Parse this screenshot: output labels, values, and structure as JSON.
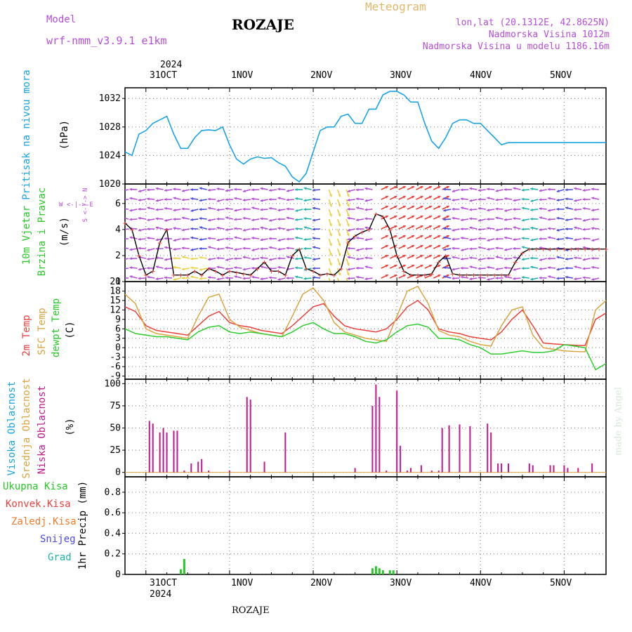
{
  "header": {
    "model_label": "Model",
    "model_name": "wrf-nmm_v3.9.1 e1km",
    "station": "ROZAJE",
    "product": "Meteogram",
    "lonlat": "lon,lat (20.1312E, 42.8625N)",
    "elev": "Nadmorska Visina 1012m",
    "elev_model": "Nadmorska Visina u modelu 1186.16m",
    "bottom_station": "ROZAJE",
    "watermark": "made by Angel"
  },
  "colors": {
    "pressure": "#1ba3e0",
    "t2m": "#e8413c",
    "tsfc": "#d9a441",
    "dewpt": "#2ecc2e",
    "low_cloud": "#c2188c",
    "mid_cloud": "#d9a441",
    "high_cloud": "#1ba3e0",
    "purple": "#b44fd6",
    "green": "#28c828",
    "red": "#e8413c",
    "orange": "#f07b2a",
    "blue": "#4a4ae0",
    "teal": "#20b2aa"
  },
  "time_axis": {
    "year": "2024",
    "days": [
      "31OCT",
      "1NOV",
      "2NOV",
      "3NOV",
      "4NOV",
      "5NOV"
    ],
    "start_offset_h": -6,
    "end_offset_h": 132
  },
  "chart_data": [
    {
      "type": "line",
      "panel": "pressure",
      "ylabel": "(hPa)",
      "side_label": "Pritisak na nivou mora",
      "ylim": [
        1020,
        1033.5
      ],
      "yticks": [
        1020,
        1024,
        1028,
        1032
      ],
      "series": [
        {
          "x": [
            -6,
            -4,
            -2,
            0,
            2,
            4,
            6,
            8,
            10,
            12,
            14,
            16,
            18,
            20,
            22,
            24,
            26,
            28,
            30,
            32,
            34,
            36,
            38,
            40,
            42,
            44,
            46,
            48,
            50,
            52,
            54,
            56,
            58,
            60,
            62,
            64,
            66,
            68,
            70,
            72,
            74,
            76,
            78,
            80,
            82,
            84,
            86,
            88,
            90,
            92,
            94,
            96,
            98,
            100,
            102,
            104,
            106,
            108,
            110,
            112,
            114,
            116,
            118,
            120,
            122,
            124,
            126,
            128,
            130,
            132
          ],
          "values": [
            1024.5,
            1024,
            1027,
            1027.5,
            1028.5,
            1029,
            1029.5,
            1027,
            1025,
            1025,
            1026.5,
            1027.5,
            1027.6,
            1027.5,
            1028,
            1025.5,
            1023.5,
            1022.8,
            1023.5,
            1023.8,
            1023.6,
            1023.7,
            1023,
            1022.5,
            1021,
            1020.3,
            1021.5,
            1024.5,
            1027.5,
            1028,
            1028,
            1029.5,
            1029.8,
            1028.5,
            1028.5,
            1030.5,
            1030.5,
            1032.5,
            1033,
            1033,
            1032.5,
            1031.5,
            1031.5,
            1028.5,
            1026,
            1025,
            1026.5,
            1028.5,
            1029,
            1029,
            1028.5,
            1028.5,
            1027.5,
            1026.5,
            1025.5,
            1025.8,
            1025.8,
            1025.8,
            1025.8,
            1025.8,
            1025.8,
            1025.8,
            1025.8,
            1025.8,
            1025.8,
            1025.8,
            1025.8,
            1025.8,
            1025.8,
            1025.8
          ]
        }
      ]
    },
    {
      "type": "line",
      "panel": "wind",
      "ylabel": "(m/s)",
      "side_label_1": "10m Vjetar",
      "side_label_2": "Brzina i Pravac",
      "compass": "W <-|-> E",
      "compass_ns": "S <-|-> N",
      "ylim": [
        0,
        7.5
      ],
      "yticks": [
        0,
        2,
        4,
        6
      ],
      "series": [
        {
          "name": "speed",
          "x": [
            -6,
            -4,
            -2,
            0,
            2,
            4,
            6,
            8,
            10,
            12,
            14,
            16,
            18,
            20,
            22,
            24,
            26,
            28,
            30,
            32,
            34,
            36,
            38,
            40,
            42,
            44,
            46,
            48,
            50,
            52,
            54,
            56,
            58,
            60,
            62,
            64,
            66,
            68,
            70,
            72,
            74,
            76,
            78,
            80,
            82,
            84,
            86,
            88,
            90,
            92,
            94,
            96,
            98,
            100,
            102,
            104,
            106,
            108,
            110,
            112,
            114,
            116,
            118,
            120,
            122,
            124,
            126,
            128,
            130,
            132
          ],
          "values": [
            4.5,
            4,
            2,
            0.5,
            0.8,
            3,
            4,
            0.5,
            0.5,
            0.5,
            0.8,
            0.5,
            1,
            0.8,
            0.5,
            0.8,
            0.7,
            0.6,
            0.5,
            1,
            1.5,
            0.8,
            0.8,
            0.5,
            2,
            2.5,
            1,
            0.8,
            0.5,
            0.6,
            0.5,
            1,
            3,
            3.5,
            3.8,
            4,
            5.2,
            5,
            4,
            2,
            0.8,
            0.5,
            0.5,
            0.5,
            0.6,
            1.5,
            2,
            0.6,
            0.5,
            0.5,
            0.5,
            0.5,
            0.5,
            0.5,
            0.5,
            0.5,
            1.5,
            2.2,
            2.5,
            2.5,
            2.5,
            2.5,
            2.5,
            2.5,
            2.5,
            2.5,
            2.5,
            2.5,
            2.5,
            2.5
          ]
        }
      ]
    },
    {
      "type": "line",
      "panel": "temperature",
      "ylabel": "(C)",
      "side_label_1": "2m Temp",
      "side_label_2": "SFC Temp",
      "side_label_3": "dewpt Temp",
      "ylim": [
        -10,
        21
      ],
      "yticks": [
        -9,
        -6,
        -3,
        0,
        3,
        6,
        9,
        12,
        15,
        18,
        21
      ],
      "series": [
        {
          "name": "2m Temp",
          "x": [
            -6,
            -3,
            0,
            3,
            6,
            9,
            12,
            15,
            18,
            21,
            24,
            27,
            30,
            33,
            36,
            39,
            42,
            45,
            48,
            51,
            54,
            57,
            60,
            63,
            66,
            69,
            72,
            75,
            78,
            81,
            84,
            87,
            90,
            93,
            96,
            99,
            102,
            105,
            108,
            111,
            114,
            117,
            120,
            123,
            126,
            129,
            132
          ],
          "values": [
            13,
            11.5,
            7,
            5.5,
            5,
            4.5,
            4,
            7,
            10,
            11.5,
            8,
            7,
            6.5,
            5.5,
            5,
            4.5,
            7,
            10,
            13,
            14,
            10,
            7,
            6,
            5.5,
            5,
            6,
            9,
            13,
            15,
            12,
            6,
            5,
            4.5,
            3.5,
            3,
            2.5,
            5,
            9,
            12,
            7,
            1.5,
            1.2,
            1,
            0.8,
            0.7,
            9,
            11
          ]
        },
        {
          "name": "SFC Temp",
          "x": [
            -6,
            -3,
            0,
            3,
            6,
            9,
            12,
            15,
            18,
            21,
            24,
            27,
            30,
            33,
            36,
            39,
            42,
            45,
            48,
            51,
            54,
            57,
            60,
            63,
            66,
            69,
            72,
            75,
            78,
            81,
            84,
            87,
            90,
            93,
            96,
            99,
            102,
            105,
            108,
            111,
            114,
            117,
            120,
            123,
            126,
            129,
            132
          ],
          "values": [
            17,
            14,
            6,
            4.5,
            4,
            3.5,
            3,
            10,
            16,
            17,
            9,
            6.5,
            5.5,
            4.5,
            4,
            3.5,
            10,
            17,
            19,
            15,
            8,
            5,
            4,
            3,
            2.5,
            2,
            10,
            18,
            19.5,
            14,
            5.5,
            4,
            3.5,
            2,
            1,
            0.5,
            7,
            12,
            13,
            4,
            0,
            -0.5,
            -1,
            -1.2,
            -1.3,
            12,
            15
          ]
        },
        {
          "name": "dewpt Temp",
          "x": [
            -6,
            -3,
            0,
            3,
            6,
            9,
            12,
            15,
            18,
            21,
            24,
            27,
            30,
            33,
            36,
            39,
            42,
            45,
            48,
            51,
            54,
            57,
            60,
            63,
            66,
            69,
            72,
            75,
            78,
            81,
            84,
            87,
            90,
            93,
            96,
            99,
            102,
            105,
            108,
            111,
            114,
            117,
            120,
            123,
            126,
            129,
            132
          ],
          "values": [
            6,
            4.5,
            4,
            3.5,
            3.5,
            3,
            2.5,
            5,
            6.5,
            7,
            5,
            4.5,
            5,
            4.5,
            4,
            3.5,
            5,
            7,
            8,
            6,
            4.5,
            4.5,
            3.5,
            2,
            1.5,
            2.5,
            5,
            7,
            7.5,
            6.5,
            3,
            3,
            2.5,
            1,
            0,
            -2,
            -2,
            -1.5,
            -1,
            -1.5,
            -1.5,
            -1,
            1,
            0.5,
            0,
            -7,
            -5
          ]
        }
      ]
    },
    {
      "type": "bar",
      "panel": "cloud",
      "ylabel": "(%)",
      "side_label_1": "Visoka Oblacnost",
      "side_label_2": "Srednja Oblacnost",
      "side_label_3": "Niska Oblacnost",
      "ylim": [
        -5,
        105
      ],
      "yticks": [
        0,
        25,
        50,
        75,
        100
      ],
      "series": [
        {
          "name": "Niska Oblacnost",
          "x": [
            1,
            2,
            4,
            5,
            6,
            8,
            9,
            11,
            13,
            15,
            16,
            18,
            24,
            29,
            30,
            34,
            40,
            60,
            65,
            66,
            67,
            69,
            72,
            73,
            75,
            76,
            79,
            82,
            84,
            85,
            87,
            90,
            93,
            98,
            99,
            101,
            102,
            104,
            110,
            111,
            116,
            117,
            120,
            121,
            124,
            128
          ],
          "values": [
            58,
            55,
            45,
            50,
            45,
            47,
            47,
            2,
            10,
            12,
            15,
            2,
            2,
            85,
            82,
            12,
            45,
            5,
            75,
            99,
            85,
            2,
            92,
            30,
            2,
            5,
            8,
            2,
            2,
            50,
            53,
            54,
            52,
            55,
            45,
            10,
            10,
            10,
            10,
            8,
            8,
            8,
            8,
            5,
            5,
            10
          ]
        }
      ]
    },
    {
      "type": "bar",
      "panel": "precip",
      "ylabel": "1hr Precip (mm)",
      "side_label_1": "Ukupna Kisa",
      "side_label_2": "Konvek.Kisa",
      "side_label_3": "Zaledj.Kisa",
      "side_label_4": "Snijeg",
      "side_label_5": "Grad",
      "ylim": [
        0,
        0.95
      ],
      "yticks": [
        0,
        0.2,
        0.4,
        0.6,
        0.8
      ],
      "series": [
        {
          "name": "Ukupna Kisa",
          "x": [
            10,
            11,
            65,
            66,
            67,
            68,
            70,
            71
          ],
          "values": [
            0.05,
            0.15,
            0.06,
            0.08,
            0.06,
            0.04,
            0.04,
            0.04
          ]
        }
      ]
    }
  ]
}
